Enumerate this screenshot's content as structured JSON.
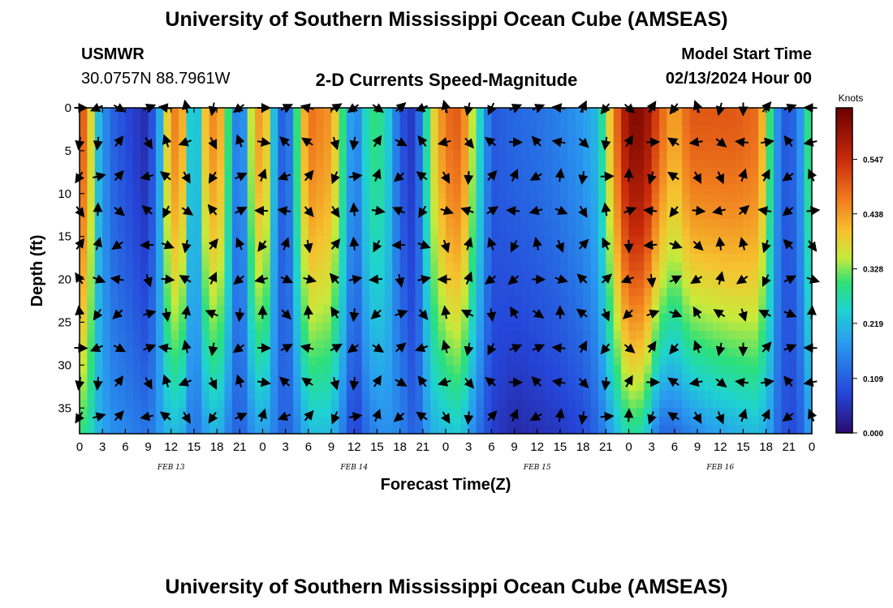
{
  "page": {
    "title": "University of Southern Mississippi Ocean Cube (AMSEAS)",
    "station_name": "USMWR",
    "station_coords": "30.0757N  88.7961W",
    "subtitle": "2-D Currents Speed-Magnitude",
    "model_start_label": "Model Start Time",
    "model_start_value": "02/13/2024 Hour 00",
    "bottom_title": "University of Southern Mississippi Ocean Cube (AMSEAS)"
  },
  "chart_data": {
    "type": "heatmap",
    "title": "2-D Currents Speed-Magnitude",
    "xlabel": "Forecast Time(Z)",
    "ylabel": "Depth (ft)",
    "x_range_hours": [
      0,
      96
    ],
    "y_range_ft": [
      0,
      38
    ],
    "y_inverted": true,
    "x_ticks": [
      0,
      3,
      6,
      9,
      12,
      15,
      18,
      21,
      24,
      27,
      30,
      33,
      36,
      39,
      42,
      45,
      48,
      51,
      54,
      57,
      60,
      63,
      66,
      69,
      72,
      75,
      78,
      81,
      84,
      87,
      90,
      93,
      96
    ],
    "x_tick_labels": [
      "0",
      "3",
      "6",
      "9",
      "12",
      "15",
      "18",
      "21",
      "0",
      "3",
      "6",
      "9",
      "12",
      "15",
      "18",
      "21",
      "0",
      "3",
      "6",
      "9",
      "12",
      "15",
      "18",
      "21",
      "0",
      "3",
      "6",
      "9",
      "12",
      "15",
      "18",
      "21",
      "0"
    ],
    "y_ticks": [
      0,
      5,
      10,
      15,
      20,
      25,
      30,
      35
    ],
    "y_tick_labels": [
      "0",
      "5",
      "10",
      "15",
      "20",
      "25",
      "30",
      "35"
    ],
    "date_labels": [
      {
        "text": "FEB 13",
        "hour": 12
      },
      {
        "text": "FEB 14",
        "hour": 36
      },
      {
        "text": "FEB 15",
        "hour": 60
      },
      {
        "text": "FEB 16",
        "hour": 84
      }
    ],
    "colorbar": {
      "unit": "Knots",
      "min": 0.0,
      "max": 0.65,
      "ticks": [
        0.0,
        0.109,
        0.219,
        0.328,
        0.438,
        0.547
      ],
      "tick_labels": [
        "0.000",
        "0.109",
        "0.219",
        "0.328",
        "0.438",
        "0.547"
      ]
    },
    "vector_hours": [
      0,
      2.4,
      5.1,
      9,
      11.4,
      14,
      17.5,
      21,
      24,
      27,
      30,
      33.5,
      36,
      39,
      42,
      45,
      48,
      51,
      54,
      57,
      60,
      63,
      66,
      69,
      72,
      75,
      78,
      81,
      84,
      87,
      90,
      93,
      96
    ],
    "vector_depths": [
      0,
      4,
      8,
      12,
      16,
      20,
      24,
      28,
      32,
      36
    ],
    "speed_profile": [
      {
        "hour": 0,
        "surface": 0.48,
        "bottom": 0.28
      },
      {
        "hour": 1,
        "surface": 0.5,
        "bottom": 0.3
      },
      {
        "hour": 2,
        "surface": 0.25,
        "bottom": 0.22
      },
      {
        "hour": 4,
        "surface": 0.12,
        "bottom": 0.17
      },
      {
        "hour": 7,
        "surface": 0.07,
        "bottom": 0.15
      },
      {
        "hour": 9,
        "surface": 0.04,
        "bottom": 0.13
      },
      {
        "hour": 10.5,
        "surface": 0.2,
        "bottom": 0.18
      },
      {
        "hour": 12,
        "surface": 0.48,
        "bottom": 0.22
      },
      {
        "hour": 13.5,
        "surface": 0.42,
        "bottom": 0.2
      },
      {
        "hour": 15,
        "surface": 0.15,
        "bottom": 0.12
      },
      {
        "hour": 16.5,
        "surface": 0.4,
        "bottom": 0.18
      },
      {
        "hour": 18,
        "surface": 0.48,
        "bottom": 0.22
      },
      {
        "hour": 19.5,
        "surface": 0.3,
        "bottom": 0.15
      },
      {
        "hour": 21,
        "surface": 0.08,
        "bottom": 0.1
      },
      {
        "hour": 22.5,
        "surface": 0.35,
        "bottom": 0.16
      },
      {
        "hour": 24,
        "surface": 0.48,
        "bottom": 0.2
      },
      {
        "hour": 25.5,
        "surface": 0.22,
        "bottom": 0.15
      },
      {
        "hour": 27,
        "surface": 0.06,
        "bottom": 0.1
      },
      {
        "hour": 28.5,
        "surface": 0.3,
        "bottom": 0.15
      },
      {
        "hour": 30,
        "surface": 0.48,
        "bottom": 0.22
      },
      {
        "hour": 33,
        "surface": 0.44,
        "bottom": 0.22
      },
      {
        "hour": 35,
        "surface": 0.25,
        "bottom": 0.12
      },
      {
        "hour": 36,
        "surface": 0.12,
        "bottom": 0.06
      },
      {
        "hour": 38,
        "surface": 0.3,
        "bottom": 0.14
      },
      {
        "hour": 40,
        "surface": 0.28,
        "bottom": 0.17
      },
      {
        "hour": 42,
        "surface": 0.1,
        "bottom": 0.16
      },
      {
        "hour": 44,
        "surface": 0.05,
        "bottom": 0.1
      },
      {
        "hour": 46,
        "surface": 0.35,
        "bottom": 0.2
      },
      {
        "hour": 48,
        "surface": 0.48,
        "bottom": 0.22
      },
      {
        "hour": 50,
        "surface": 0.5,
        "bottom": 0.24
      },
      {
        "hour": 52,
        "surface": 0.3,
        "bottom": 0.14
      },
      {
        "hour": 54,
        "surface": 0.1,
        "bottom": 0.07
      },
      {
        "hour": 57,
        "surface": 0.12,
        "bottom": 0.04
      },
      {
        "hour": 60,
        "surface": 0.13,
        "bottom": 0.05
      },
      {
        "hour": 63,
        "surface": 0.15,
        "bottom": 0.06
      },
      {
        "hour": 66,
        "surface": 0.18,
        "bottom": 0.08
      },
      {
        "hour": 68,
        "surface": 0.22,
        "bottom": 0.12
      },
      {
        "hour": 70,
        "surface": 0.45,
        "bottom": 0.2
      },
      {
        "hour": 72,
        "surface": 0.62,
        "bottom": 0.28
      },
      {
        "hour": 74,
        "surface": 0.62,
        "bottom": 0.26
      },
      {
        "hour": 76,
        "surface": 0.5,
        "bottom": 0.12
      },
      {
        "hour": 78,
        "surface": 0.42,
        "bottom": 0.12
      },
      {
        "hour": 80,
        "surface": 0.5,
        "bottom": 0.15
      },
      {
        "hour": 83,
        "surface": 0.5,
        "bottom": 0.18
      },
      {
        "hour": 86,
        "surface": 0.5,
        "bottom": 0.2
      },
      {
        "hour": 89,
        "surface": 0.48,
        "bottom": 0.22
      },
      {
        "hour": 90.5,
        "surface": 0.3,
        "bottom": 0.18
      },
      {
        "hour": 92,
        "surface": 0.1,
        "bottom": 0.1
      },
      {
        "hour": 94,
        "surface": 0.12,
        "bottom": 0.08
      },
      {
        "hour": 96,
        "surface": 0.35,
        "bottom": 0.2
      }
    ]
  }
}
